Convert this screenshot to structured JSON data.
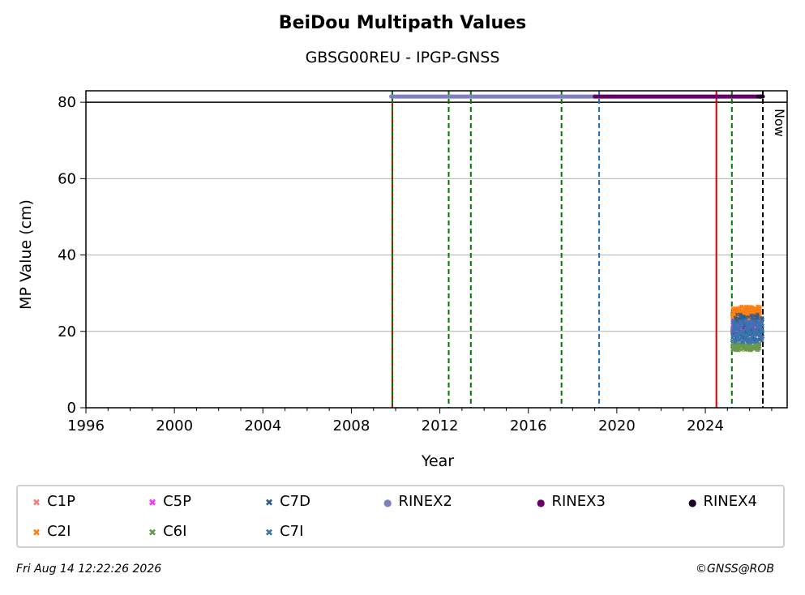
{
  "chart_data": {
    "type": "scatter",
    "title": "BeiDou Multipath Values",
    "subtitle": "GBSG00REU - IPGP-GNSS",
    "xlabel": "Year",
    "ylabel": "MP Value (cm)",
    "xlim": [
      1996.0,
      2027.7
    ],
    "ylim": [
      0,
      83
    ],
    "x_ticks": [
      "1996",
      "2000",
      "2004",
      "2008",
      "2012",
      "2016",
      "2020",
      "2024"
    ],
    "y_ticks": [
      "0",
      "20",
      "40",
      "60",
      "80"
    ],
    "grid": "horizontal",
    "reference_line_y": 80,
    "now_label": "Now",
    "series": [
      {
        "name": "C1P",
        "marker": "x",
        "color": "#f08080",
        "x_range": [
          2025.2,
          2026.5
        ],
        "y_mean": 23,
        "y_spread": 2
      },
      {
        "name": "C2I",
        "marker": "x",
        "color": "#ff7f0e",
        "x_range": [
          2025.2,
          2026.5
        ],
        "y_mean": 25,
        "y_spread": 1.6
      },
      {
        "name": "C5P",
        "marker": "x",
        "color": "#ff33ff",
        "x_range": [
          2025.2,
          2026.5
        ],
        "y_mean": 21,
        "y_spread": 1.8
      },
      {
        "name": "C6I",
        "marker": "x",
        "color": "#6a994e",
        "x_range": [
          2025.2,
          2026.5
        ],
        "y_mean": 16,
        "y_spread": 1
      },
      {
        "name": "C7D",
        "marker": "x",
        "color": "#2f5d8c",
        "x_range": [
          2025.2,
          2026.6
        ],
        "y_mean": 21,
        "y_spread": 3.5
      },
      {
        "name": "C7I",
        "marker": "x",
        "color": "#3a75b0",
        "x_range": [
          2025.2,
          2026.6
        ],
        "y_mean": 20,
        "y_spread": 3
      },
      {
        "name": "RINEX2",
        "marker": "o",
        "color": "#8080c0",
        "x_range": [
          2009.8,
          2019.0
        ],
        "y": 81.5
      },
      {
        "name": "RINEX3",
        "marker": "o",
        "color": "#660066",
        "x_range": [
          2019.0,
          2026.5
        ],
        "y": 81.5
      },
      {
        "name": "RINEX4",
        "marker": "o",
        "color": "#1a0022",
        "x_range": [
          2026.4,
          2026.6
        ],
        "y": 81.5
      }
    ],
    "vertical_lines": [
      {
        "x": 2009.85,
        "color": "#c00000",
        "style": "solid"
      },
      {
        "x": 2009.85,
        "color": "#007700",
        "style": "dashed"
      },
      {
        "x": 2012.4,
        "color": "#007700",
        "style": "dashed"
      },
      {
        "x": 2013.4,
        "color": "#007700",
        "style": "dashed"
      },
      {
        "x": 2017.5,
        "color": "#007700",
        "style": "dashed"
      },
      {
        "x": 2019.2,
        "color": "#1f6fb4",
        "style": "dashed"
      },
      {
        "x": 2024.5,
        "color": "#d00000",
        "style": "solid"
      },
      {
        "x": 2025.2,
        "color": "#007700",
        "style": "dashed"
      },
      {
        "x": 2026.6,
        "color": "#000000",
        "style": "dashed"
      }
    ],
    "legend": {
      "placement": "bottom",
      "entries": [
        "C1P",
        "C5P",
        "C7D",
        "RINEX2",
        "RINEX3",
        "RINEX4",
        "C2I",
        "C6I",
        "C7I"
      ]
    }
  },
  "footer": {
    "timestamp": "Fri Aug 14 12:22:26 2026",
    "credit": "©GNSS@ROB"
  }
}
